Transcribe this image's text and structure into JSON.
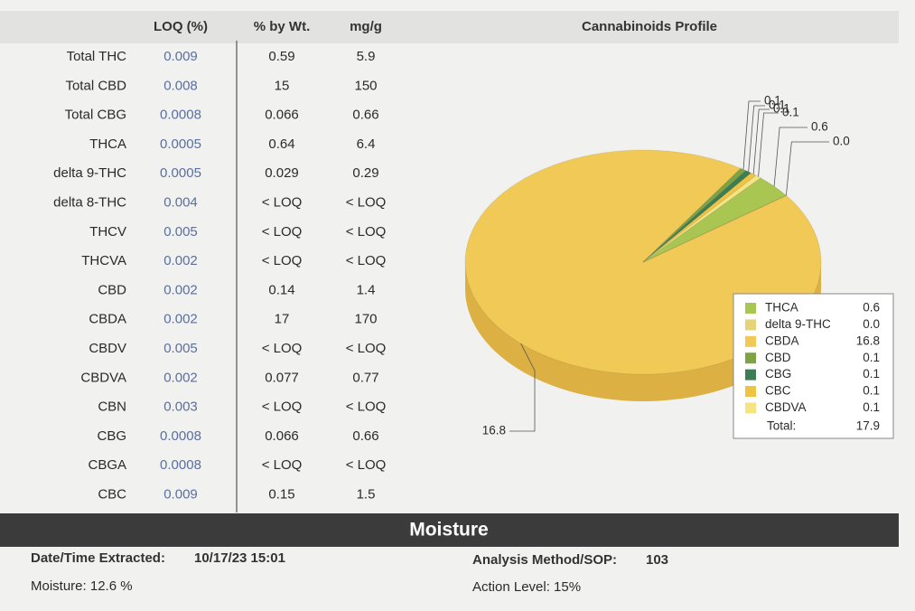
{
  "table": {
    "header": [
      "LOQ (%)",
      "% by Wt.",
      "mg/g"
    ],
    "rows": [
      [
        "Total THC",
        "0.009",
        "0.59",
        "5.9"
      ],
      [
        "Total CBD",
        "0.008",
        "15",
        "150"
      ],
      [
        "Total CBG",
        "0.0008",
        "0.066",
        "0.66"
      ],
      [
        "THCA",
        "0.0005",
        "0.64",
        "6.4"
      ],
      [
        "delta 9-THC",
        "0.0005",
        "0.029",
        "0.29"
      ],
      [
        "delta 8-THC",
        "0.004",
        "< LOQ",
        "< LOQ"
      ],
      [
        "THCV",
        "0.005",
        "< LOQ",
        "< LOQ"
      ],
      [
        "THCVA",
        "0.002",
        "< LOQ",
        "< LOQ"
      ],
      [
        "CBD",
        "0.002",
        "0.14",
        "1.4"
      ],
      [
        "CBDA",
        "0.002",
        "17",
        "170"
      ],
      [
        "CBDV",
        "0.005",
        "< LOQ",
        "< LOQ"
      ],
      [
        "CBDVA",
        "0.002",
        "0.077",
        "0.77"
      ],
      [
        "CBN",
        "0.003",
        "< LOQ",
        "< LOQ"
      ],
      [
        "CBG",
        "0.0008",
        "0.066",
        "0.66"
      ],
      [
        "CBGA",
        "0.0008",
        "< LOQ",
        "< LOQ"
      ],
      [
        "CBC",
        "0.009",
        "0.15",
        "1.5"
      ]
    ]
  },
  "chart_data": {
    "type": "pie",
    "title": "Cannabinoids Profile",
    "categories": [
      "THCA",
      "delta 9-THC",
      "CBDA",
      "CBD",
      "CBG",
      "CBC",
      "CBDVA"
    ],
    "values": [
      0.6,
      0,
      16.8,
      0.1,
      0.1,
      0.1,
      0.1
    ],
    "value_labels": [
      "0.6",
      "0.0",
      "16.8",
      "0.1",
      "0.1",
      "0.1",
      "0.1"
    ],
    "colors": [
      "#a9c653",
      "#e6d27a",
      "#f1c957",
      "#7ea244",
      "#3d7d55",
      "#f0c443",
      "#f6e483"
    ],
    "total_label": "Total:",
    "total": 17.9
  },
  "moisture": {
    "title": "Moisture",
    "date_label": "Date/Time Extracted:",
    "date_value": "10/17/23 15:01",
    "method_label": "Analysis Method/SOP:",
    "method_value": "103",
    "moisture_text": "Moisture:  12.6 %",
    "action_text": "Action Level: 15%"
  }
}
